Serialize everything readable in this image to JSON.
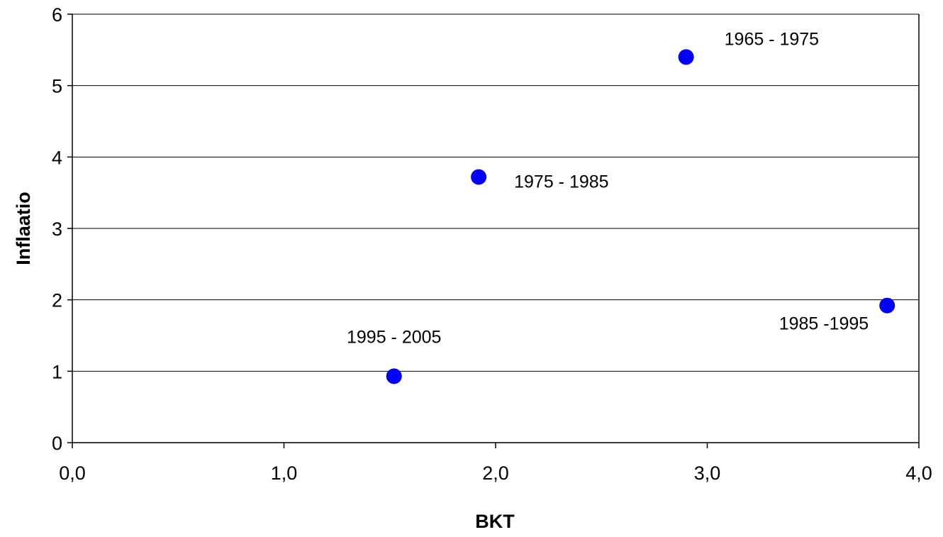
{
  "chart_data": {
    "type": "scatter",
    "title": "",
    "xlabel": "BKT",
    "ylabel": "Inflaatio",
    "xlim": [
      0,
      4
    ],
    "ylim": [
      0,
      6
    ],
    "x_ticks": [
      "0,0",
      "1,0",
      "2,0",
      "3,0",
      "4,0"
    ],
    "y_ticks": [
      "0",
      "1",
      "2",
      "3",
      "4",
      "5",
      "6"
    ],
    "grid": "horizontal",
    "legend": "none",
    "marker_color": "#0000ff",
    "points": [
      {
        "x": 2.9,
        "y": 5.4,
        "label": "1965 - 1975"
      },
      {
        "x": 1.92,
        "y": 3.72,
        "label": "1975 - 1985"
      },
      {
        "x": 3.85,
        "y": 1.92,
        "label": "1985 -1995"
      },
      {
        "x": 1.52,
        "y": 0.93,
        "label": "1995 - 2005"
      }
    ]
  }
}
